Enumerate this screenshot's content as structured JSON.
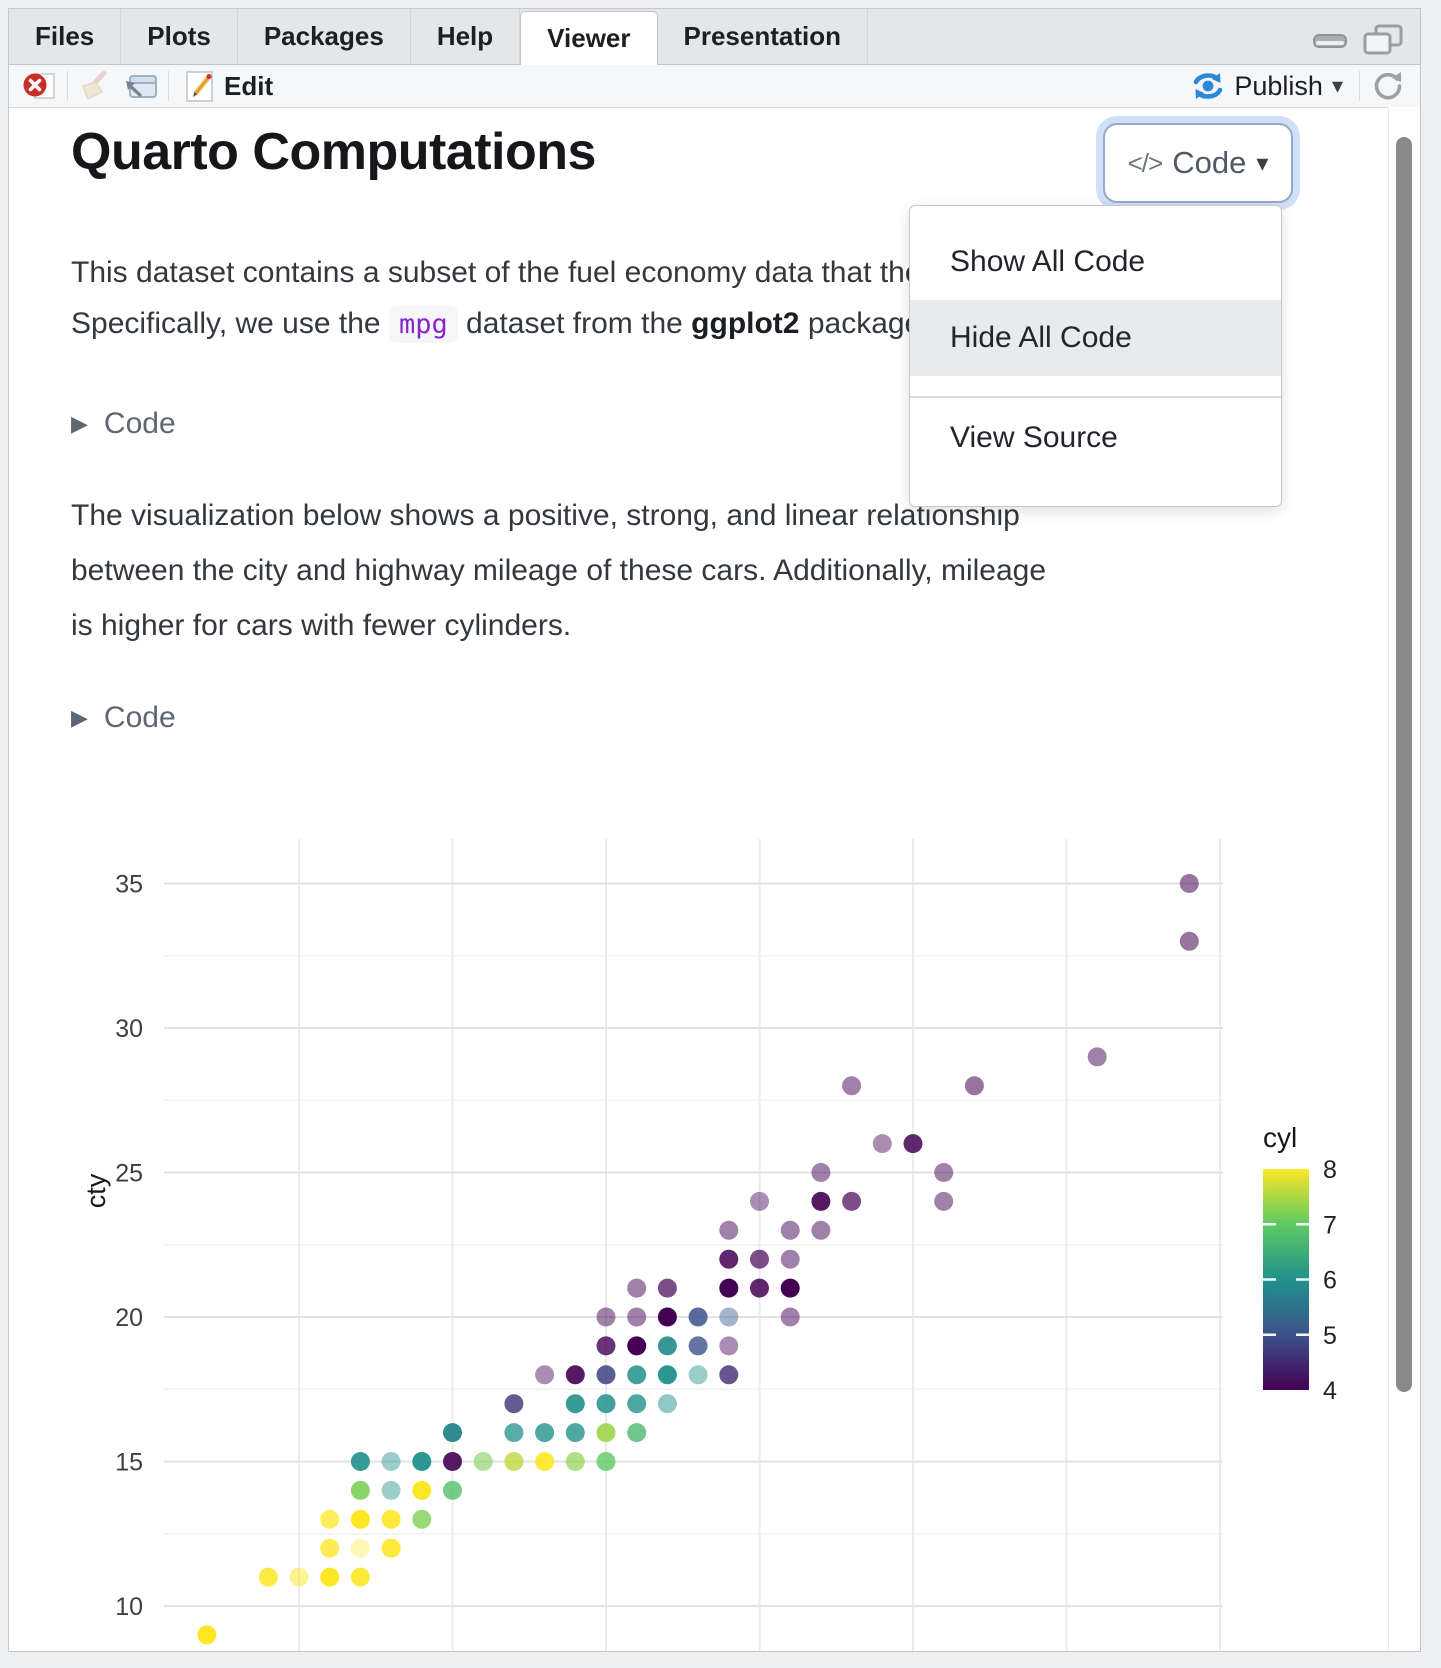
{
  "tabs": {
    "items": [
      "Files",
      "Plots",
      "Packages",
      "Help",
      "Viewer",
      "Presentation"
    ],
    "active": "Viewer"
  },
  "window_controls": {
    "minimize": "minimize",
    "maximize": "maximize"
  },
  "toolbar": {
    "edit_label": "Edit",
    "publish_label": "Publish"
  },
  "icons": {
    "caret_down": "▾",
    "triangle_right": "▶",
    "code_glyph": "</>"
  },
  "colors": {
    "publish_blue": "#2b87d8",
    "stop_red": "#c62f2a",
    "focus_ring": "#cfe1f8",
    "menu_highlight": "#e8ebee",
    "chip_purple": "#8527c9"
  },
  "document": {
    "title": "Quarto Computations",
    "code_button": {
      "icon": "</>",
      "label": "Code"
    },
    "menu": {
      "items": [
        "Show All Code",
        "Hide All Code",
        "View Source"
      ],
      "highlighted": "Hide All Code"
    },
    "p1": {
      "line1": "This dataset contains a subset of the fuel economy data that the EPA makes",
      "line2_pre": "Specifically, we use the ",
      "code": "mpg",
      "line2_mid": " dataset from the ",
      "line2_bold": "ggplot2",
      "line2_post": " package."
    },
    "code_fold_label": "Code",
    "p2_lines": [
      "The visualization below shows a positive, strong, and linear relationship",
      "between the city and highway mileage of these cars. Additionally, mileage",
      "is higher for cars with fewer cylinders."
    ]
  },
  "chart_data": {
    "type": "scatter",
    "title": "",
    "xlabel": "",
    "ylabel": "cty",
    "grid": true,
    "x_gridlines": [
      15,
      20,
      25,
      30,
      35,
      40,
      45
    ],
    "y_ticks": [
      35,
      30,
      25,
      20,
      15,
      10
    ],
    "y_minor": [
      32.5,
      27.5,
      22.5,
      17.5,
      12.5
    ],
    "xlim": [
      10.6,
      45.2
    ],
    "ylim": [
      8.4,
      36.4
    ],
    "legend": {
      "title": "cyl",
      "position": "right",
      "ticks": [
        8,
        7,
        6,
        5,
        4
      ],
      "range": [
        4,
        8
      ],
      "viridis_stops": {
        "4": "#440154",
        "5": "#3b528b",
        "6": "#21918c",
        "7": "#5ec962",
        "8": "#fde725"
      }
    },
    "point_fields": [
      "hwy",
      "cty",
      "cyl_color_value",
      "opacity"
    ],
    "points": [
      [
        12,
        9,
        8,
        1
      ],
      [
        14,
        11,
        8,
        0.85
      ],
      [
        15,
        11,
        8,
        0.5
      ],
      [
        16,
        11,
        8,
        1
      ],
      [
        17,
        11,
        8,
        0.9
      ],
      [
        16,
        12,
        8,
        0.8
      ],
      [
        17,
        12,
        8,
        0.35
      ],
      [
        18,
        12,
        8,
        0.9
      ],
      [
        16,
        13,
        8,
        0.75
      ],
      [
        17,
        13,
        8,
        1
      ],
      [
        18,
        13,
        8,
        0.9
      ],
      [
        19,
        13,
        7.2,
        0.8
      ],
      [
        17,
        14,
        7.2,
        0.9
      ],
      [
        18,
        14,
        6,
        0.45
      ],
      [
        19,
        14,
        8,
        1
      ],
      [
        20,
        14,
        6.8,
        0.8
      ],
      [
        17,
        15,
        6,
        0.9
      ],
      [
        18,
        15,
        6,
        0.45
      ],
      [
        19,
        15,
        6,
        0.95
      ],
      [
        20,
        15,
        4,
        0.9
      ],
      [
        21,
        15,
        7.2,
        0.6
      ],
      [
        22,
        15,
        7.6,
        0.8
      ],
      [
        23,
        15,
        8,
        0.9
      ],
      [
        24,
        15,
        7.3,
        0.7
      ],
      [
        25,
        15,
        7,
        0.8
      ],
      [
        20,
        16,
        5.8,
        0.95
      ],
      [
        22,
        16,
        6,
        0.75
      ],
      [
        23,
        16,
        6,
        0.8
      ],
      [
        24,
        16,
        6,
        0.8
      ],
      [
        25,
        16,
        7.4,
        0.9
      ],
      [
        26,
        16,
        6.7,
        0.8
      ],
      [
        22,
        17,
        4.6,
        0.8
      ],
      [
        24,
        17,
        6,
        0.9
      ],
      [
        25,
        17,
        6,
        0.85
      ],
      [
        26,
        17,
        6,
        0.8
      ],
      [
        27,
        17,
        6,
        0.5
      ],
      [
        23,
        18,
        4,
        0.45
      ],
      [
        24,
        18,
        4,
        0.9
      ],
      [
        25,
        18,
        4.8,
        0.85
      ],
      [
        26,
        18,
        6,
        0.85
      ],
      [
        27,
        18,
        6,
        0.95
      ],
      [
        28,
        18,
        6,
        0.45
      ],
      [
        29,
        18,
        4.5,
        0.8
      ],
      [
        25,
        19,
        4,
        0.8
      ],
      [
        26,
        19,
        4,
        1
      ],
      [
        27,
        19,
        5.9,
        0.9
      ],
      [
        28,
        19,
        5,
        0.8
      ],
      [
        29,
        19,
        4,
        0.45
      ],
      [
        25,
        20,
        4,
        0.5
      ],
      [
        26,
        20,
        4,
        0.5
      ],
      [
        27,
        20,
        4,
        1
      ],
      [
        28,
        20,
        5,
        0.85
      ],
      [
        29,
        20,
        5.1,
        0.45
      ],
      [
        31,
        20,
        4,
        0.5
      ],
      [
        26,
        21,
        4,
        0.5
      ],
      [
        27,
        21,
        4,
        0.7
      ],
      [
        29,
        21,
        4,
        1
      ],
      [
        30,
        21,
        4,
        0.85
      ],
      [
        31,
        21,
        4,
        1
      ],
      [
        29,
        22,
        4,
        0.85
      ],
      [
        30,
        22,
        4,
        0.7
      ],
      [
        31,
        22,
        4,
        0.5
      ],
      [
        29,
        23,
        4,
        0.5
      ],
      [
        31,
        23,
        4,
        0.5
      ],
      [
        32,
        23,
        4,
        0.5
      ],
      [
        30,
        24,
        4,
        0.45
      ],
      [
        32,
        24,
        4,
        0.9
      ],
      [
        33,
        24,
        4,
        0.7
      ],
      [
        36,
        24,
        4,
        0.5
      ],
      [
        32,
        25,
        4,
        0.5
      ],
      [
        36,
        25,
        4,
        0.5
      ],
      [
        34,
        26,
        4,
        0.45
      ],
      [
        35,
        26,
        4,
        0.85
      ],
      [
        33,
        28,
        4,
        0.5
      ],
      [
        37,
        28,
        4,
        0.55
      ],
      [
        41,
        29,
        4,
        0.5
      ],
      [
        44,
        33,
        4,
        0.55
      ],
      [
        44,
        35,
        4,
        0.55
      ]
    ]
  }
}
